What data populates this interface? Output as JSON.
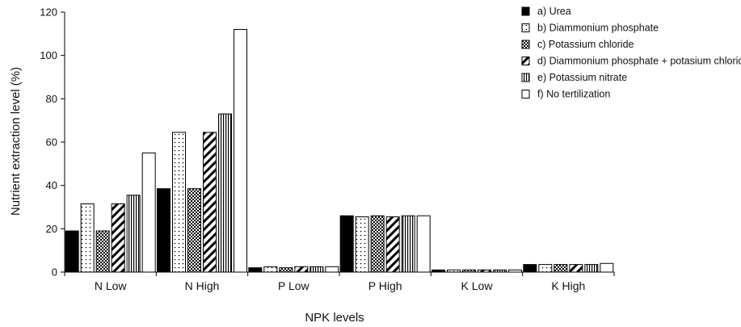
{
  "chart_data": {
    "type": "bar",
    "title": "",
    "xlabel": "NPK levels",
    "ylabel": "Nutrient extraction level (%)",
    "ylim": [
      0,
      120
    ],
    "yticks": [
      "0",
      "20",
      "40",
      "60",
      "80",
      "100",
      "120"
    ],
    "categories": [
      "N Low",
      "N High",
      "P Low",
      "P High",
      "K Low",
      "K High"
    ],
    "legend_position": "top-right",
    "series": [
      {
        "name": "a) Urea",
        "pattern": "solid",
        "values": [
          19,
          38.5,
          2,
          26,
          1,
          3.5
        ]
      },
      {
        "name": "b) Diammonium phosphate",
        "pattern": "dots",
        "values": [
          31.5,
          64.5,
          2.5,
          25.5,
          1,
          3.5
        ]
      },
      {
        "name": "c) Potassium chloride",
        "pattern": "checker",
        "values": [
          19,
          38.5,
          2,
          26,
          1,
          3.5
        ]
      },
      {
        "name": "d) Diammonium phosphate + potasium chloride",
        "pattern": "diagonal",
        "values": [
          31.5,
          64.5,
          2.5,
          25.5,
          1,
          3.5
        ]
      },
      {
        "name": "e) Potassium nitrate",
        "pattern": "vertical",
        "values": [
          35.5,
          73,
          2.5,
          26,
          1,
          3.5
        ]
      },
      {
        "name": "f) No tertilization",
        "pattern": "empty",
        "values": [
          55,
          112,
          2.5,
          26,
          1,
          4
        ]
      }
    ]
  }
}
